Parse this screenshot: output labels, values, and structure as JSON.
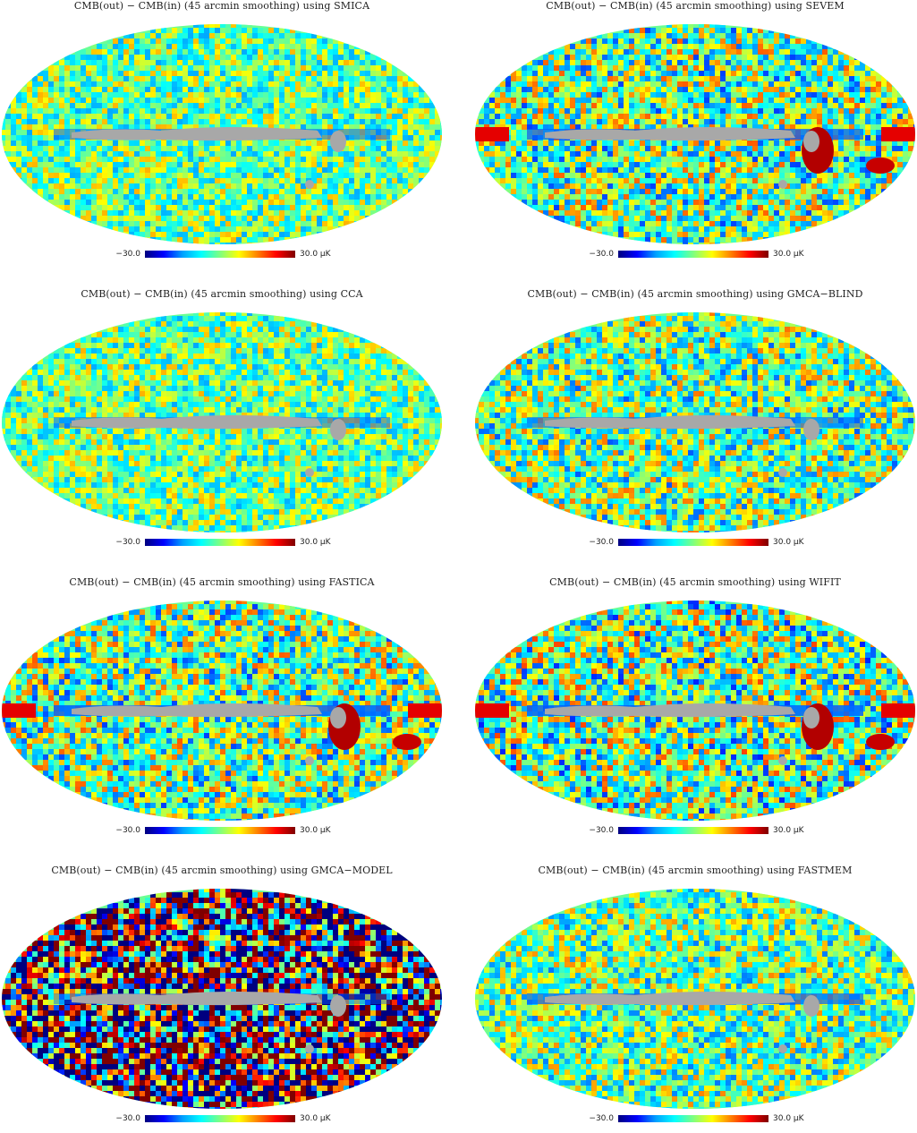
{
  "colorbar": {
    "min_label": "−30.0",
    "max_label": "30.0 μK",
    "range": [
      -30.0,
      30.0
    ],
    "palette": [
      "#00007f",
      "#0000ff",
      "#00a0ff",
      "#00ffff",
      "#7fff7f",
      "#ffff00",
      "#ff8000",
      "#ff0000",
      "#7f0000"
    ],
    "mask_color": "#a8a8a8"
  },
  "panels": [
    {
      "title": "CMB(out) − CMB(in) (45 arcmin smoothing) using SMICA"
    },
    {
      "title": "CMB(out) − CMB(in) (45 arcmin smoothing) using SEVEM"
    },
    {
      "title": "CMB(out) − CMB(in) (45 arcmin smoothing) using CCA"
    },
    {
      "title": "CMB(out) − CMB(in) (45 arcmin smoothing) using GMCA−BLIND"
    },
    {
      "title": "CMB(out) − CMB(in) (45 arcmin smoothing) using FASTICA"
    },
    {
      "title": "CMB(out) − CMB(in) (45 arcmin smoothing) using WIFIT"
    },
    {
      "title": "CMB(out) − CMB(in) (45 arcmin smoothing) using GMCA−MODEL"
    },
    {
      "title": "CMB(out) − CMB(in) (45 arcmin smoothing) using FASTMEM"
    }
  ]
}
